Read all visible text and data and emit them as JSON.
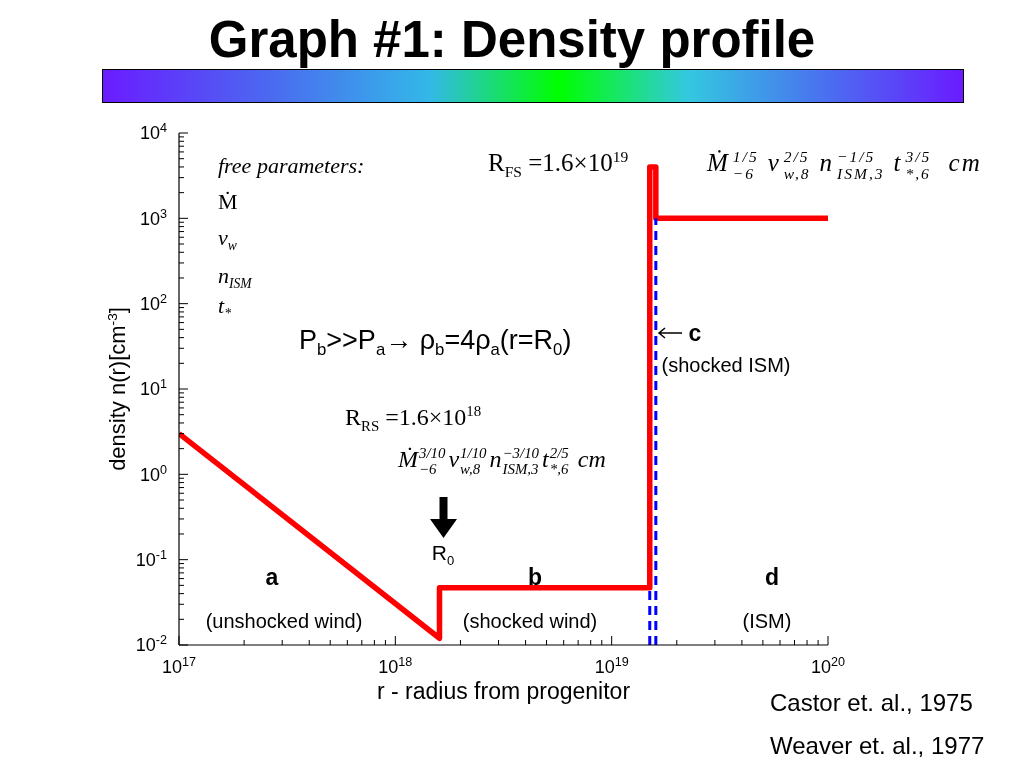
{
  "chart_data": {
    "type": "line",
    "title": "Graph #1: Density profile",
    "xlabel": "r - radius from progenitor",
    "ylabel": "density n(r)[cm$^{-3}$]",
    "series": [
      {
        "color": "#ff0000",
        "line_style": "solid",
        "x": [
          1e+17,
          1.6e+18,
          1.6e+18,
          1.5e+19,
          1.5e+19,
          1.6e+19,
          1.6e+19,
          1e+20
        ],
        "values": [
          3,
          0.012,
          0.047,
          0.047,
          4000,
          4000,
          1000,
          1000
        ]
      },
      {
        "color": "#0000ff",
        "line_style": "dashed",
        "x": [
          1.5e+19,
          1.5e+19
        ],
        "values": [
          0.01,
          0.047
        ]
      },
      {
        "color": "#0000ff",
        "line_style": "dashed",
        "x": [
          1.6e+19,
          1.6e+19
        ],
        "values": [
          0.01,
          1000
        ]
      }
    ],
    "log": "xy",
    "xlim": [
      1e+17,
      1e+20
    ],
    "ylim": [
      0.01,
      10000
    ],
    "xticks": [
      {
        "value": 1e+17,
        "label": "10$^{17}$"
      },
      {
        "value": 2e+17,
        "label": null
      },
      {
        "value": 3e+17,
        "label": null
      },
      {
        "value": 4e+17,
        "label": null
      },
      {
        "value": 5e+17,
        "label": null
      },
      {
        "value": 6e+17,
        "label": null
      },
      {
        "value": 7e+17,
        "label": null
      },
      {
        "value": 8e+17,
        "label": null
      },
      {
        "value": 9e+17,
        "label": null
      },
      {
        "value": 1e+18,
        "label": "10$^{18}$"
      },
      {
        "value": 2e+18,
        "label": null
      },
      {
        "value": 3e+18,
        "label": null
      },
      {
        "value": 4e+18,
        "label": null
      },
      {
        "value": 5e+18,
        "label": null
      },
      {
        "value": 6e+18,
        "label": null
      },
      {
        "value": 7e+18,
        "label": null
      },
      {
        "value": 8e+18,
        "label": null
      },
      {
        "value": 9e+18,
        "label": null
      },
      {
        "value": 1e+19,
        "label": "10$^{19}$"
      },
      {
        "value": 2e+19,
        "label": null
      },
      {
        "value": 3e+19,
        "label": null
      },
      {
        "value": 4e+19,
        "label": null
      },
      {
        "value": 5e+19,
        "label": null
      },
      {
        "value": 6e+19,
        "label": null
      },
      {
        "value": 7e+19,
        "label": null
      },
      {
        "value": 8e+19,
        "label": null
      },
      {
        "value": 9e+19,
        "label": null
      },
      {
        "value": 1e+20,
        "label": "10$^{20}$"
      }
    ],
    "yticks": [
      {
        "value": 0.01,
        "label": "10$^{-2}$"
      },
      {
        "value": 0.02,
        "label": null
      },
      {
        "value": 0.03,
        "label": null
      },
      {
        "value": 0.04,
        "label": null
      },
      {
        "value": 0.05,
        "label": null
      },
      {
        "value": 0.06,
        "label": null
      },
      {
        "value": 0.07,
        "label": null
      },
      {
        "value": 0.08,
        "label": null
      },
      {
        "value": 0.09,
        "label": null
      },
      {
        "value": 0.1,
        "label": "10$^{-1}$"
      },
      {
        "value": 0.2,
        "label": null
      },
      {
        "value": 0.3,
        "label": null
      },
      {
        "value": 0.4,
        "label": null
      },
      {
        "value": 0.5,
        "label": null
      },
      {
        "value": 0.6,
        "label": null
      },
      {
        "value": 0.7,
        "label": null
      },
      {
        "value": 0.8,
        "label": null
      },
      {
        "value": 0.9,
        "label": null
      },
      {
        "value": 1,
        "label": "10$^{0}$"
      },
      {
        "value": 2,
        "label": null
      },
      {
        "value": 3,
        "label": null
      },
      {
        "value": 4,
        "label": null
      },
      {
        "value": 5,
        "label": null
      },
      {
        "value": 6,
        "label": null
      },
      {
        "value": 7,
        "label": null
      },
      {
        "value": 8,
        "label": null
      },
      {
        "value": 9,
        "label": null
      },
      {
        "value": 10,
        "label": "10$^{1}$"
      },
      {
        "value": 20,
        "label": null
      },
      {
        "value": 30,
        "label": null
      },
      {
        "value": 40,
        "label": null
      },
      {
        "value": 50,
        "label": null
      },
      {
        "value": 60,
        "label": null
      },
      {
        "value": 70,
        "label": null
      },
      {
        "value": 80,
        "label": null
      },
      {
        "value": 90,
        "label": null
      },
      {
        "value": 100,
        "label": "10$^{2}$"
      },
      {
        "value": 200,
        "label": null
      },
      {
        "value": 300,
        "label": null
      },
      {
        "value": 400,
        "label": null
      },
      {
        "value": 500,
        "label": null
      },
      {
        "value": 600,
        "label": null
      },
      {
        "value": 700,
        "label": null
      },
      {
        "value": 800,
        "label": null
      },
      {
        "value": 900,
        "label": null
      },
      {
        "value": 1000,
        "label": "10$^{3}$"
      },
      {
        "value": 2000,
        "label": null
      },
      {
        "value": 3000,
        "label": null
      },
      {
        "value": 4000,
        "label": null
      },
      {
        "value": 5000,
        "label": null
      },
      {
        "value": 6000,
        "label": null
      },
      {
        "value": 7000,
        "label": null
      },
      {
        "value": 8000,
        "label": null
      },
      {
        "value": 9000,
        "label": null
      },
      {
        "value": 10000,
        "label": "10$^{4}$"
      }
    ],
    "annotations": [
      "free parameters:",
      "Ṁ",
      "v$_{w}$",
      "n$_{ISM}$",
      "t$_{*}$",
      "P$_{b}$>>P$_{a}$→ ρ$_{b}$=4ρ$_{a}$(r=R$_{0}$)",
      "R$_{RS}$ =1.6×10$^{18}$",
      "Ṁ$^{3/10}$$_{−6}$v$^{1/10}$$_{w,8}$n$^{−3/10}$$_{ISM,3}$t$^{2/5}$$_{*,6}$ cm",
      "R$_{FS}$ =1.6×10$^{19}$",
      "Ṁ$^{1/5}$$_{−6}$v$^{2/5}$$_{w,8}$n$^{−1/5}$$_{ISM,3}$t$^{3/5}$$_{*,6}$ cm",
      "R$_{0}$",
      "a",
      "(unshocked wind)",
      "b",
      "(shocked wind)",
      "c",
      "(shocked ISM)",
      "d",
      "(ISM)",
      "Castor et. al., 1975",
      "Weaver et. al., 1977"
    ]
  }
}
